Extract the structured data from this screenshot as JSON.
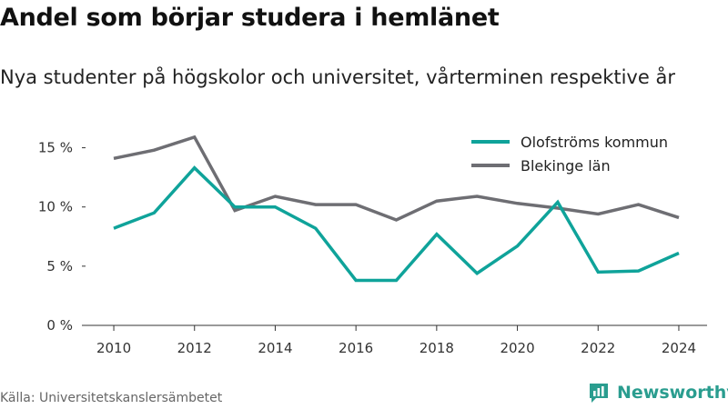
{
  "title": "Andel som börjar studera i hemlänet",
  "subtitle": "Nya studenter på högskolor och universitet, vårterminen respektive år",
  "source": "Källa: Universitetskanslersämbetet",
  "brand": {
    "name": "Newsworthy",
    "icon": "newsworthy-logo-icon",
    "color": "#2a9d8f"
  },
  "chart_data": {
    "type": "line",
    "x": [
      2010,
      2011,
      2012,
      2013,
      2014,
      2015,
      2016,
      2017,
      2018,
      2019,
      2020,
      2021,
      2022,
      2023,
      2024
    ],
    "xticks": [
      2010,
      2012,
      2014,
      2016,
      2018,
      2020,
      2022,
      2024
    ],
    "xtick_labels": [
      "2010",
      "2012",
      "2014",
      "2016",
      "2018",
      "2020",
      "2022",
      "2024"
    ],
    "yticks": [
      0,
      5,
      10,
      15
    ],
    "ytick_labels": [
      "0 %",
      "5 %",
      "10 %",
      "15 %"
    ],
    "ylim": [
      0,
      17.5
    ],
    "xlim": [
      2009.3,
      2024.7
    ],
    "grid": false,
    "legend_position": "top-right",
    "series": [
      {
        "name": "Olofströms kommun",
        "color": "#0fa39a",
        "values": [
          8.2,
          9.5,
          13.3,
          10.0,
          10.0,
          8.2,
          3.8,
          3.8,
          7.7,
          4.4,
          6.7,
          10.4,
          4.5,
          4.6,
          6.1
        ]
      },
      {
        "name": "Blekinge län",
        "color": "#6e6e73",
        "values": [
          14.1,
          14.8,
          15.9,
          9.7,
          10.9,
          10.2,
          10.2,
          8.9,
          10.5,
          10.9,
          10.3,
          9.9,
          9.4,
          10.2,
          9.1
        ]
      }
    ]
  }
}
